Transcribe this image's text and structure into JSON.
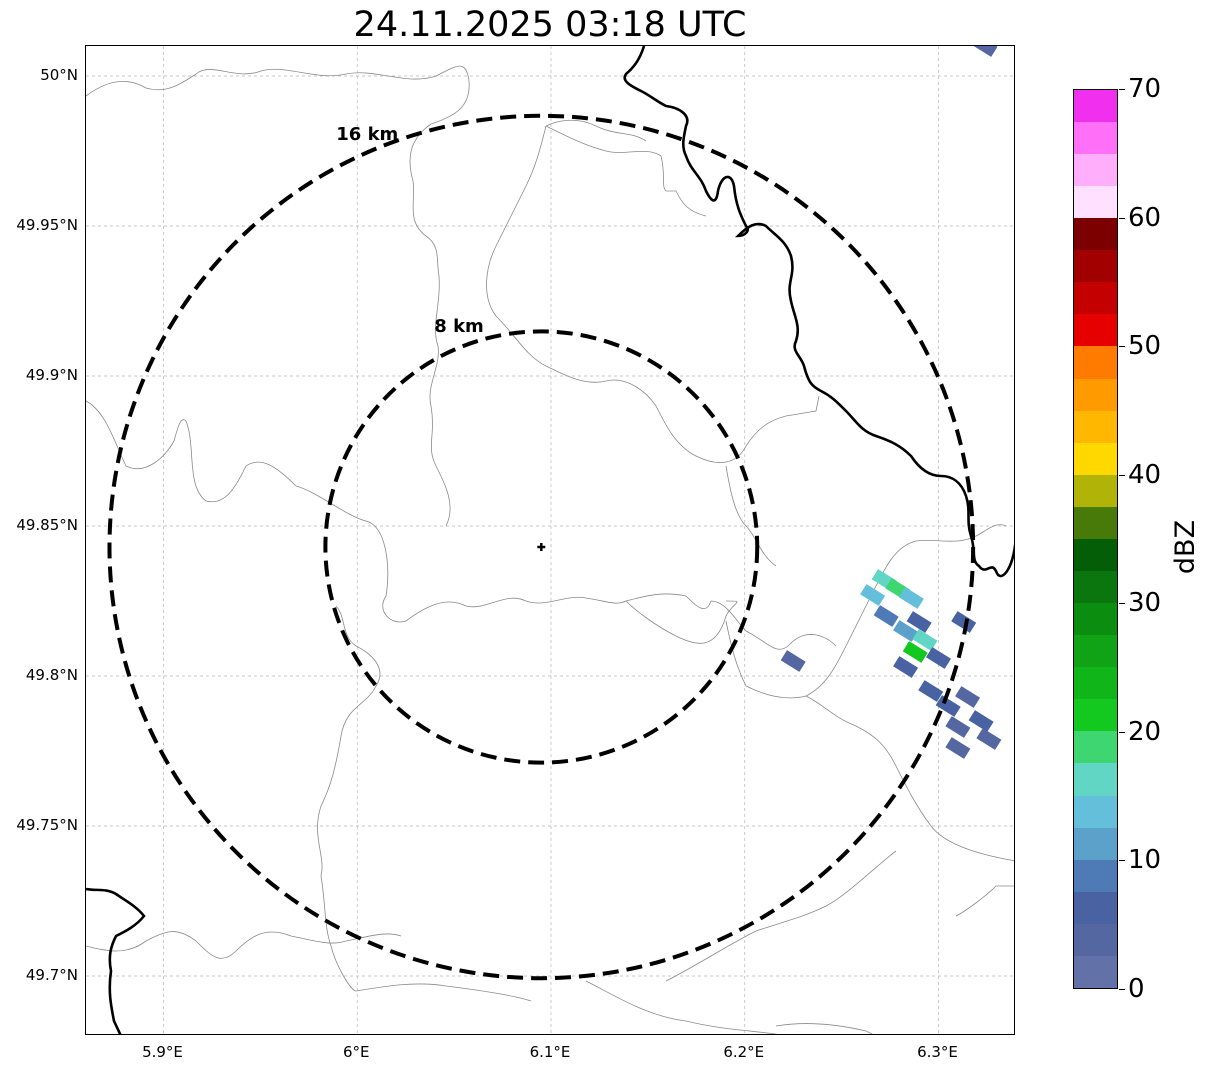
{
  "title": "24.11.2025 03:18 UTC",
  "axes": {
    "lon_ticks": [
      {
        "value": 5.9,
        "label": "5.9°E"
      },
      {
        "value": 6.0,
        "label": "6°E"
      },
      {
        "value": 6.1,
        "label": "6.1°E"
      },
      {
        "value": 6.2,
        "label": "6.2°E"
      },
      {
        "value": 6.3,
        "label": "6.3°E"
      }
    ],
    "lat_ticks": [
      {
        "value": 50.0,
        "label": "50°N"
      },
      {
        "value": 49.95,
        "label": "49.95°N"
      },
      {
        "value": 49.9,
        "label": "49.9°N"
      },
      {
        "value": 49.85,
        "label": "49.85°N"
      },
      {
        "value": 49.8,
        "label": "49.8°N"
      },
      {
        "value": 49.75,
        "label": "49.75°N"
      },
      {
        "value": 49.7,
        "label": "49.7°N"
      }
    ],
    "lon_range": [
      5.86,
      6.34
    ],
    "lat_range": [
      49.68,
      50.01
    ],
    "grid": true
  },
  "radar": {
    "center": {
      "lon": 6.095,
      "lat": 49.843
    },
    "rings": [
      {
        "radius_km": 8,
        "label": "8 km"
      },
      {
        "radius_km": 16,
        "label": "16 km"
      }
    ]
  },
  "colorbar": {
    "label": "dBZ",
    "min": 0,
    "max": 70,
    "tick_labels": [
      "0",
      "10",
      "20",
      "30",
      "40",
      "50",
      "60",
      "70"
    ],
    "colors": [
      "#6272a8",
      "#5467a1",
      "#4862a2",
      "#4e7ab5",
      "#5ba1c9",
      "#64bfdb",
      "#62d6c4",
      "#3ed671",
      "#13c91f",
      "#10b519",
      "#0fa315",
      "#0b8d10",
      "#0a760d",
      "#045e08",
      "#487a0a",
      "#b2b307",
      "#ffd800",
      "#ffb700",
      "#ff9a00",
      "#ff7b00",
      "#e60000",
      "#c40000",
      "#a20000",
      "#7d0000",
      "#ffe0ff",
      "#ffaefb",
      "#ff6ff8",
      "#f030ee"
    ]
  },
  "echoes": [
    {
      "lon": 6.272,
      "lat": 49.832,
      "dbz": 15
    },
    {
      "lon": 6.279,
      "lat": 49.829,
      "dbz": 19
    },
    {
      "lon": 6.286,
      "lat": 49.826,
      "dbz": 14
    },
    {
      "lon": 6.266,
      "lat": 49.827,
      "dbz": 13
    },
    {
      "lon": 6.29,
      "lat": 49.818,
      "dbz": 7
    },
    {
      "lon": 6.273,
      "lat": 49.82,
      "dbz": 8
    },
    {
      "lon": 6.283,
      "lat": 49.815,
      "dbz": 12
    },
    {
      "lon": 6.293,
      "lat": 49.812,
      "dbz": 15
    },
    {
      "lon": 6.288,
      "lat": 49.808,
      "dbz": 22
    },
    {
      "lon": 6.3,
      "lat": 49.806,
      "dbz": 6
    },
    {
      "lon": 6.313,
      "lat": 49.818,
      "dbz": 6
    },
    {
      "lon": 6.283,
      "lat": 49.803,
      "dbz": 5
    },
    {
      "lon": 6.225,
      "lat": 49.805,
      "dbz": 3
    },
    {
      "lon": 6.296,
      "lat": 49.795,
      "dbz": 5
    },
    {
      "lon": 6.305,
      "lat": 49.79,
      "dbz": 5
    },
    {
      "lon": 6.315,
      "lat": 49.793,
      "dbz": 4
    },
    {
      "lon": 6.31,
      "lat": 49.783,
      "dbz": 3
    },
    {
      "lon": 6.322,
      "lat": 49.785,
      "dbz": 5
    },
    {
      "lon": 6.326,
      "lat": 49.779,
      "dbz": 4
    },
    {
      "lon": 6.31,
      "lat": 49.776,
      "dbz": 3
    },
    {
      "lon": 6.324,
      "lat": 50.01,
      "dbz": 3
    }
  ]
}
